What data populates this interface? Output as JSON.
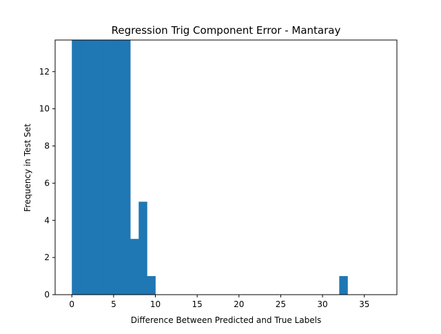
{
  "chart_data": {
    "type": "bar",
    "title": "Regression Trig Component Error - Mantaray",
    "xlabel": "Difference Between Predicted and True Labels",
    "ylabel": "Frequency in Test Set",
    "xlim": [
      -2,
      38.9
    ],
    "ylim": [
      0,
      13.7
    ],
    "xticks": [
      0,
      5,
      10,
      15,
      20,
      25,
      30,
      35
    ],
    "yticks": [
      0,
      2,
      4,
      6,
      8,
      10,
      12
    ],
    "bin_width": 1,
    "bins": [
      {
        "x": 0,
        "value": 14
      },
      {
        "x": 1,
        "value": 14
      },
      {
        "x": 2,
        "value": 14
      },
      {
        "x": 3,
        "value": 14
      },
      {
        "x": 4,
        "value": 14
      },
      {
        "x": 5,
        "value": 14
      },
      {
        "x": 6,
        "value": 14
      },
      {
        "x": 7,
        "value": 3
      },
      {
        "x": 8,
        "value": 5
      },
      {
        "x": 9,
        "value": 1
      },
      {
        "x": 32,
        "value": 1
      }
    ],
    "color": "#1f77b4",
    "grid": false
  }
}
